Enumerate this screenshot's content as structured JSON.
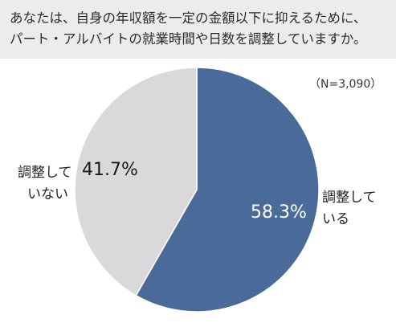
{
  "question": {
    "line1": "あなたは、自身の年収額を一定の金額以下に抑えるために、",
    "line2": "パート・アルバイトの就業時間や日数を調整していますか。"
  },
  "sample_size": "（N=3,090）",
  "colors": {
    "yes": "#4a6a9a",
    "no": "#d9d9dc",
    "header_bg": "#ececec"
  },
  "chart_data": {
    "type": "pie",
    "title": "あなたは、自身の年収額を一定の金額以下に抑えるために、パート・アルバイトの就業時間や日数を調整していますか。",
    "slices": [
      {
        "label_line1": "調整して",
        "label_line2": "いる",
        "value": 58.3,
        "value_label": "58.3%",
        "color": "#4a6a9a"
      },
      {
        "label_line1": "調整して",
        "label_line2": "いない",
        "value": 41.7,
        "value_label": "41.7%",
        "color": "#d9d9dc"
      }
    ]
  }
}
